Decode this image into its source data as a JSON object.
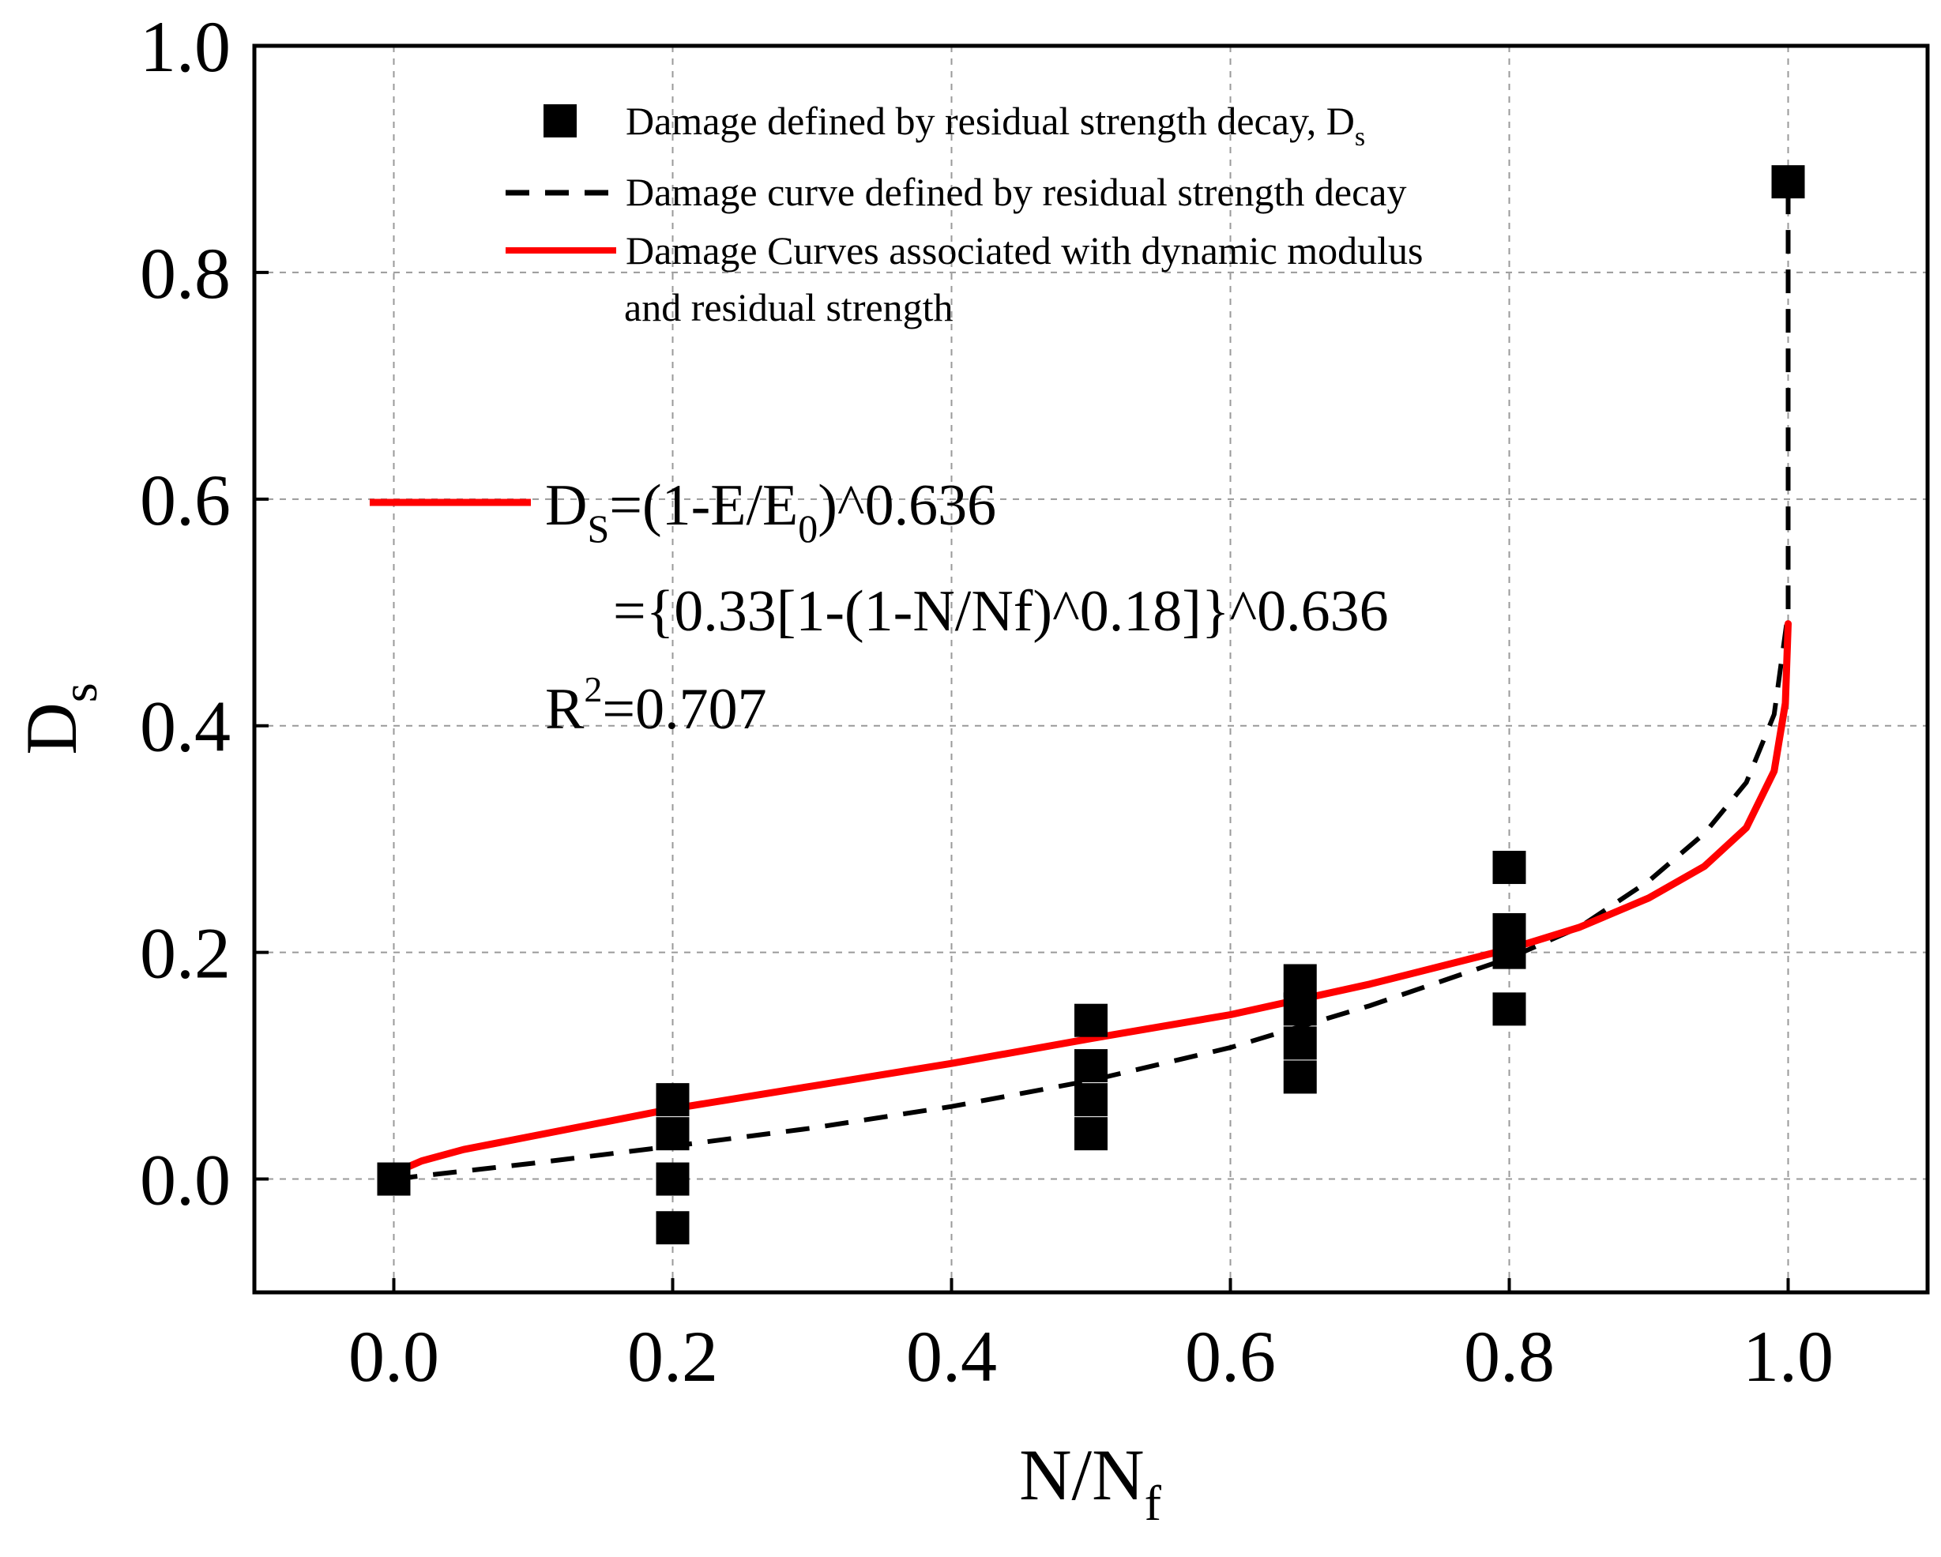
{
  "chart_data": {
    "type": "scatter",
    "title": "",
    "xlabel": "N/N",
    "xlabel_sub": "f",
    "ylabel": "D",
    "ylabel_sub": "s",
    "xlim": [
      -0.1,
      1.1
    ],
    "ylim": [
      -0.1,
      1.0
    ],
    "xticks": [
      0.0,
      0.2,
      0.4,
      0.6,
      0.8,
      1.0
    ],
    "xtick_labels": [
      "0.0",
      "0.2",
      "0.4",
      "0.6",
      "0.8",
      "1.0"
    ],
    "yticks": [
      0.0,
      0.2,
      0.4,
      0.6,
      0.8,
      1.0
    ],
    "ytick_labels": [
      "0.0",
      "0.2",
      "0.4",
      "0.6",
      "0.8",
      "1.0"
    ],
    "grid": true,
    "legend_position": "top-center",
    "series": [
      {
        "name": "Damage defined by residual strength decay, D",
        "name_sub": "s",
        "kind": "scatter",
        "color": "#000000",
        "points": [
          [
            0.0,
            0.0
          ],
          [
            0.2,
            -0.043
          ],
          [
            0.2,
            0.0
          ],
          [
            0.2,
            0.04
          ],
          [
            0.2,
            0.07
          ],
          [
            0.5,
            0.04
          ],
          [
            0.5,
            0.07
          ],
          [
            0.5,
            0.1
          ],
          [
            0.5,
            0.14
          ],
          [
            0.65,
            0.09
          ],
          [
            0.65,
            0.12
          ],
          [
            0.65,
            0.15
          ],
          [
            0.65,
            0.175
          ],
          [
            0.8,
            0.15
          ],
          [
            0.8,
            0.2
          ],
          [
            0.8,
            0.22
          ],
          [
            0.8,
            0.275
          ],
          [
            1.0,
            0.88
          ]
        ]
      },
      {
        "name": "Damage curve defined by residual strength decay",
        "kind": "dashed-line",
        "color": "#000000",
        "points": [
          [
            0.0,
            0.0
          ],
          [
            0.1,
            0.014
          ],
          [
            0.2,
            0.029
          ],
          [
            0.3,
            0.045
          ],
          [
            0.4,
            0.064
          ],
          [
            0.5,
            0.087
          ],
          [
            0.6,
            0.116
          ],
          [
            0.7,
            0.153
          ],
          [
            0.8,
            0.195
          ],
          [
            0.85,
            0.222
          ],
          [
            0.9,
            0.263
          ],
          [
            0.94,
            0.305
          ],
          [
            0.97,
            0.35
          ],
          [
            0.99,
            0.41
          ],
          [
            1.0,
            0.5
          ],
          [
            1.0,
            0.88
          ]
        ]
      },
      {
        "name_line1": "Damage Curves associated with dynamic modulus",
        "name_line2": "and residual strength",
        "kind": "line",
        "color": "#ff0000",
        "points": [
          [
            0.0,
            0.0
          ],
          [
            0.005,
            0.008
          ],
          [
            0.02,
            0.016
          ],
          [
            0.05,
            0.026
          ],
          [
            0.1,
            0.038
          ],
          [
            0.2,
            0.062
          ],
          [
            0.3,
            0.082
          ],
          [
            0.4,
            0.102
          ],
          [
            0.5,
            0.124
          ],
          [
            0.6,
            0.145
          ],
          [
            0.7,
            0.172
          ],
          [
            0.8,
            0.203
          ],
          [
            0.85,
            0.222
          ],
          [
            0.9,
            0.248
          ],
          [
            0.94,
            0.276
          ],
          [
            0.97,
            0.31
          ],
          [
            0.99,
            0.36
          ],
          [
            0.998,
            0.42
          ],
          [
            1.0,
            0.49
          ]
        ]
      }
    ],
    "annotation": {
      "line1_prefix": "D",
      "line1_sub": "S",
      "line1_mid": "=(1-E/E",
      "line1_sub2": "0",
      "line1_suffix": ")^0.636",
      "line2": "={0.33[1-(1-N/Nf)^0.18]}^0.636",
      "line3_prefix": "R",
      "line3_sup": "2",
      "line3_suffix": "=0.707"
    }
  }
}
